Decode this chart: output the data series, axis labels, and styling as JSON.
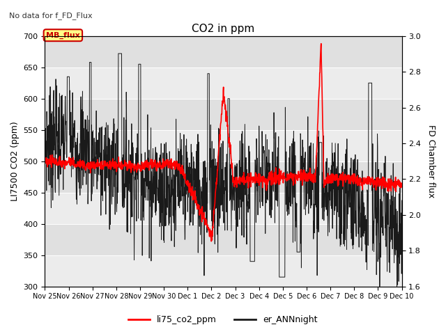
{
  "title": "CO2 in ppm",
  "subtitle": "No data for f_FD_Flux",
  "ylabel_left": "LI7500 CO2 (ppm)",
  "ylabel_right": "FD Chamber flux",
  "ylim_left": [
    300,
    700
  ],
  "ylim_right": [
    1.6,
    3.0
  ],
  "yticks_left": [
    300,
    350,
    400,
    450,
    500,
    550,
    600,
    650,
    700
  ],
  "yticks_right": [
    1.6,
    1.8,
    2.0,
    2.2,
    2.4,
    2.6,
    2.8,
    3.0
  ],
  "date_labels": [
    "Nov 25",
    "Nov 26",
    "Nov 27",
    "Nov 28",
    "Nov 29",
    "Nov 30",
    "Dec 1",
    "Dec 2",
    "Dec 3",
    "Dec 4",
    "Dec 5",
    "Dec 6",
    "Dec 7",
    "Dec 8",
    "Dec 9",
    "Dec 10"
  ],
  "color_red": "#ff0000",
  "color_black": "#1a1a1a",
  "color_bg_light": "#ececec",
  "color_bg_dark": "#e0e0e0",
  "legend_label_red": "li75_co2_ppm",
  "legend_label_black": "er_ANNnight",
  "annotation_text": "MB_flux",
  "annotation_color": "#cc0000",
  "annotation_bg": "#ffff88",
  "title_fontsize": 11,
  "label_fontsize": 9,
  "tick_fontsize": 8,
  "xtick_fontsize": 7
}
